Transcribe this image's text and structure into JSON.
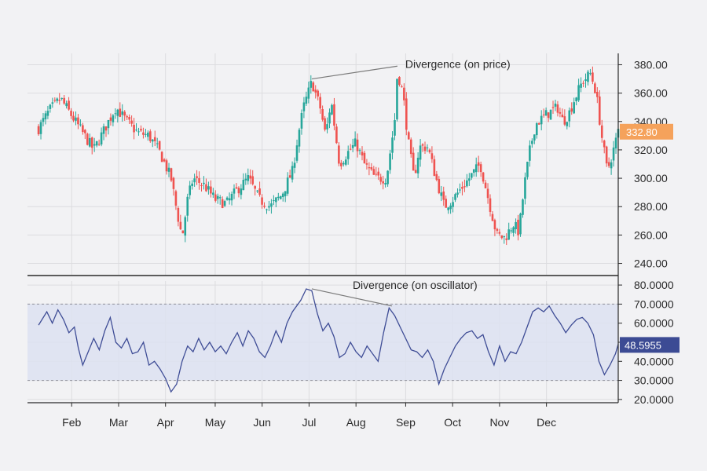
{
  "chart_data": [
    {
      "type": "candlestick",
      "panel": "price",
      "y_ticks": [
        "380.00",
        "360.00",
        "340.00",
        "320.00",
        "300.00",
        "280.00",
        "260.00",
        "240.00"
      ],
      "ylim": [
        232,
        388
      ],
      "last_price_label": "332.80",
      "annotation": "Divergence (on price)",
      "divergence_points": [
        [
          0.495,
          370
        ],
        [
          0.65,
          379
        ]
      ],
      "colors": {
        "up": "#26a69a",
        "down": "#ef5350",
        "badge": "#f5a25b"
      },
      "close_path": [
        [
          0.0,
          335
        ],
        [
          0.02,
          348
        ],
        [
          0.04,
          356
        ],
        [
          0.06,
          344
        ],
        [
          0.08,
          332
        ],
        [
          0.1,
          320
        ],
        [
          0.12,
          335
        ],
        [
          0.14,
          350
        ],
        [
          0.16,
          340
        ],
        [
          0.18,
          332
        ],
        [
          0.2,
          330
        ],
        [
          0.22,
          318
        ],
        [
          0.24,
          300
        ],
        [
          0.25,
          278
        ],
        [
          0.26,
          258
        ],
        [
          0.27,
          285
        ],
        [
          0.28,
          300
        ],
        [
          0.3,
          295
        ],
        [
          0.32,
          285
        ],
        [
          0.34,
          282
        ],
        [
          0.36,
          292
        ],
        [
          0.38,
          300
        ],
        [
          0.4,
          285
        ],
        [
          0.42,
          280
        ],
        [
          0.44,
          288
        ],
        [
          0.46,
          305
        ],
        [
          0.47,
          330
        ],
        [
          0.48,
          350
        ],
        [
          0.495,
          368
        ],
        [
          0.51,
          350
        ],
        [
          0.52,
          330
        ],
        [
          0.53,
          355
        ],
        [
          0.545,
          310
        ],
        [
          0.56,
          318
        ],
        [
          0.575,
          325
        ],
        [
          0.59,
          310
        ],
        [
          0.61,
          300
        ],
        [
          0.63,
          300
        ],
        [
          0.645,
          340
        ],
        [
          0.65,
          375
        ],
        [
          0.66,
          360
        ],
        [
          0.67,
          325
        ],
        [
          0.68,
          300
        ],
        [
          0.69,
          322
        ],
        [
          0.705,
          322
        ],
        [
          0.72,
          300
        ],
        [
          0.735,
          280
        ],
        [
          0.75,
          285
        ],
        [
          0.77,
          295
        ],
        [
          0.79,
          305
        ],
        [
          0.8,
          310
        ],
        [
          0.815,
          285
        ],
        [
          0.83,
          260
        ],
        [
          0.845,
          258
        ],
        [
          0.86,
          268
        ],
        [
          0.87,
          262
        ],
        [
          0.88,
          295
        ],
        [
          0.89,
          320
        ],
        [
          0.9,
          338
        ],
        [
          0.92,
          345
        ],
        [
          0.94,
          350
        ],
        [
          0.95,
          340
        ],
        [
          0.96,
          345
        ],
        [
          0.97,
          355
        ],
        [
          0.985,
          368
        ],
        [
          1.0,
          374
        ],
        [
          1.01,
          360
        ],
        [
          1.02,
          330
        ],
        [
          1.03,
          305
        ],
        [
          1.04,
          318
        ],
        [
          1.05,
          333
        ]
      ]
    },
    {
      "type": "line",
      "panel": "oscillator",
      "y_ticks": [
        "80.0000",
        "70.0000",
        "60.0000",
        "50.0000",
        "40.0000",
        "30.0000",
        "20.0000"
      ],
      "ylim": [
        18.3,
        82.1
      ],
      "band": [
        30,
        70
      ],
      "last_value_label": "48.5955",
      "annotation": "Divergence (on oscillator)",
      "divergence_points": [
        [
          0.495,
          78
        ],
        [
          0.64,
          69
        ]
      ],
      "colors": {
        "line": "#3f4d96",
        "band": "#dde2f1",
        "badge": "#3c4b94"
      },
      "values": [
        [
          0.0,
          59
        ],
        [
          0.015,
          66
        ],
        [
          0.025,
          60
        ],
        [
          0.035,
          67
        ],
        [
          0.045,
          62
        ],
        [
          0.055,
          55
        ],
        [
          0.065,
          58
        ],
        [
          0.072,
          47
        ],
        [
          0.08,
          38
        ],
        [
          0.09,
          45
        ],
        [
          0.1,
          52
        ],
        [
          0.11,
          46
        ],
        [
          0.12,
          56
        ],
        [
          0.13,
          63
        ],
        [
          0.14,
          50
        ],
        [
          0.15,
          47
        ],
        [
          0.16,
          52
        ],
        [
          0.17,
          44
        ],
        [
          0.18,
          45
        ],
        [
          0.19,
          50
        ],
        [
          0.2,
          38
        ],
        [
          0.21,
          40
        ],
        [
          0.22,
          36
        ],
        [
          0.23,
          31
        ],
        [
          0.24,
          24
        ],
        [
          0.25,
          28
        ],
        [
          0.26,
          40
        ],
        [
          0.27,
          48
        ],
        [
          0.28,
          45
        ],
        [
          0.29,
          52
        ],
        [
          0.3,
          46
        ],
        [
          0.31,
          50
        ],
        [
          0.32,
          45
        ],
        [
          0.33,
          48
        ],
        [
          0.34,
          44
        ],
        [
          0.35,
          50
        ],
        [
          0.36,
          55
        ],
        [
          0.37,
          48
        ],
        [
          0.38,
          56
        ],
        [
          0.39,
          52
        ],
        [
          0.4,
          45
        ],
        [
          0.41,
          42
        ],
        [
          0.42,
          48
        ],
        [
          0.43,
          56
        ],
        [
          0.44,
          50
        ],
        [
          0.45,
          60
        ],
        [
          0.46,
          66
        ],
        [
          0.475,
          72
        ],
        [
          0.485,
          78
        ],
        [
          0.495,
          77
        ],
        [
          0.505,
          65
        ],
        [
          0.515,
          56
        ],
        [
          0.525,
          60
        ],
        [
          0.535,
          53
        ],
        [
          0.545,
          42
        ],
        [
          0.555,
          44
        ],
        [
          0.565,
          50
        ],
        [
          0.575,
          45
        ],
        [
          0.585,
          42
        ],
        [
          0.595,
          48
        ],
        [
          0.605,
          44
        ],
        [
          0.615,
          40
        ],
        [
          0.625,
          55
        ],
        [
          0.635,
          68
        ],
        [
          0.645,
          64
        ],
        [
          0.655,
          58
        ],
        [
          0.665,
          52
        ],
        [
          0.675,
          46
        ],
        [
          0.685,
          45
        ],
        [
          0.695,
          42
        ],
        [
          0.705,
          46
        ],
        [
          0.715,
          40
        ],
        [
          0.725,
          28
        ],
        [
          0.735,
          36
        ],
        [
          0.745,
          42
        ],
        [
          0.755,
          48
        ],
        [
          0.765,
          52
        ],
        [
          0.775,
          55
        ],
        [
          0.785,
          56
        ],
        [
          0.795,
          52
        ],
        [
          0.805,
          54
        ],
        [
          0.815,
          45
        ],
        [
          0.825,
          38
        ],
        [
          0.835,
          48
        ],
        [
          0.845,
          40
        ],
        [
          0.855,
          45
        ],
        [
          0.865,
          44
        ],
        [
          0.875,
          50
        ],
        [
          0.885,
          58
        ],
        [
          0.895,
          66
        ],
        [
          0.905,
          68
        ],
        [
          0.915,
          66
        ],
        [
          0.925,
          69
        ],
        [
          0.935,
          64
        ],
        [
          0.945,
          60
        ],
        [
          0.955,
          55
        ],
        [
          0.965,
          59
        ],
        [
          0.975,
          62
        ],
        [
          0.985,
          63
        ],
        [
          0.995,
          60
        ],
        [
          1.005,
          54
        ],
        [
          1.015,
          40
        ],
        [
          1.025,
          33
        ],
        [
          1.035,
          38
        ],
        [
          1.045,
          44
        ],
        [
          1.05,
          49
        ]
      ]
    }
  ],
  "x_axis": {
    "months": [
      {
        "label": "Feb",
        "pos": 0.06
      },
      {
        "label": "Mar",
        "pos": 0.145
      },
      {
        "label": "Apr",
        "pos": 0.23
      },
      {
        "label": "May",
        "pos": 0.32
      },
      {
        "label": "Jun",
        "pos": 0.405
      },
      {
        "label": "Jul",
        "pos": 0.49
      },
      {
        "label": "Aug",
        "pos": 0.575
      },
      {
        "label": "Sep",
        "pos": 0.665
      },
      {
        "label": "Oct",
        "pos": 0.75
      },
      {
        "label": "Nov",
        "pos": 0.835
      },
      {
        "label": "Dec",
        "pos": 0.92
      }
    ]
  }
}
